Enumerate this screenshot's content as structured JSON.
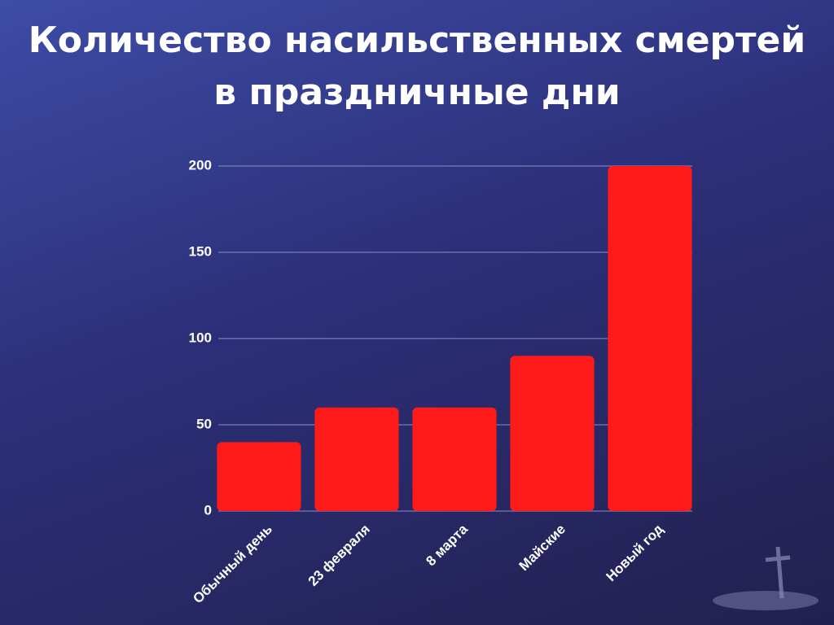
{
  "chart_data": {
    "type": "bar",
    "title": "Количество насильственных смертей в праздничные дни",
    "categories": [
      "Обычный день",
      "23 февраля",
      "8 марта",
      "Майские",
      "Новый год"
    ],
    "values": [
      40,
      60,
      60,
      90,
      200
    ],
    "color": "#ff1a1a",
    "ylim": [
      0,
      200
    ],
    "yticks": [
      0,
      50,
      100,
      150,
      200
    ],
    "grid": true
  }
}
